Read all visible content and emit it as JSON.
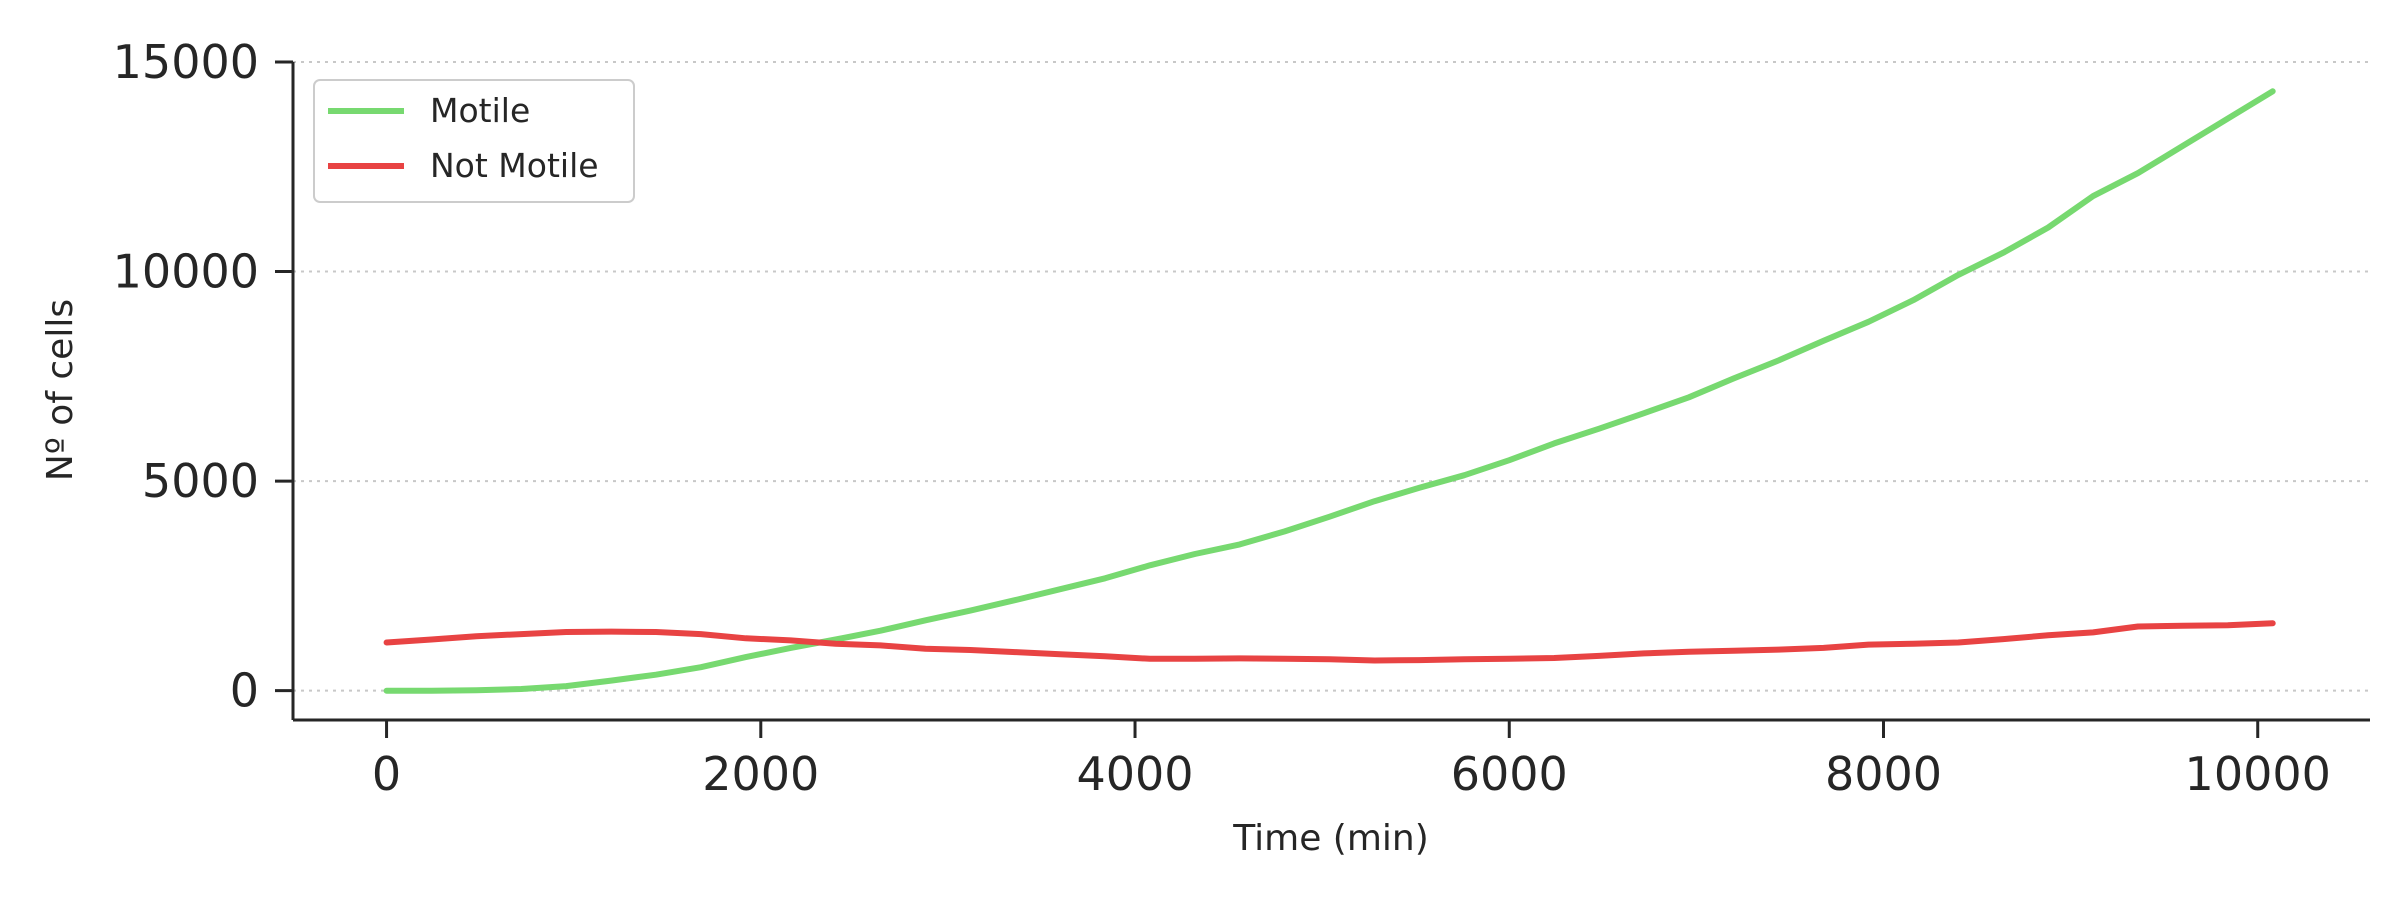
{
  "chart_data": {
    "type": "line",
    "title": "",
    "xlabel": "Time (min)",
    "ylabel": "Nº of cells",
    "xlim": [
      -500,
      10600
    ],
    "ylim": [
      -700,
      15000
    ],
    "xticks": [
      0,
      2000,
      4000,
      6000,
      8000,
      10000
    ],
    "yticks": [
      0,
      5000,
      10000,
      15000
    ],
    "grid": "horizontal dotted",
    "legend_position": "top-left",
    "series": [
      {
        "name": "Motile",
        "color": "#77d970",
        "x": [
          0,
          240,
          480,
          720,
          960,
          1200,
          1440,
          1680,
          1920,
          2160,
          2400,
          2640,
          2880,
          3120,
          3360,
          3600,
          3840,
          4080,
          4320,
          4560,
          4800,
          5040,
          5280,
          5520,
          5760,
          6000,
          6240,
          6480,
          6720,
          6960,
          7200,
          7440,
          7680,
          7920,
          8160,
          8400,
          8640,
          8880,
          9120,
          9360,
          9600,
          9840,
          10080
        ],
        "y": [
          0,
          0,
          10,
          40,
          110,
          240,
          380,
          560,
          800,
          1020,
          1220,
          1430,
          1680,
          1910,
          2160,
          2420,
          2680,
          2990,
          3260,
          3490,
          3800,
          4150,
          4520,
          4840,
          5140,
          5500,
          5900,
          6250,
          6620,
          7000,
          7450,
          7880,
          8350,
          8800,
          9320,
          9920,
          10450,
          11050,
          11800,
          12350,
          13000,
          13650,
          14300
        ]
      },
      {
        "name": "Not Motile",
        "color": "#e84343",
        "x": [
          0,
          240,
          480,
          720,
          960,
          1200,
          1440,
          1680,
          1920,
          2160,
          2400,
          2640,
          2880,
          3120,
          3360,
          3600,
          3840,
          4080,
          4320,
          4560,
          4800,
          5040,
          5280,
          5520,
          5760,
          6000,
          6240,
          6480,
          6720,
          6960,
          7200,
          7440,
          7680,
          7920,
          8160,
          8400,
          8640,
          8880,
          9120,
          9360,
          9600,
          9840,
          10080
        ],
        "y": [
          1150,
          1220,
          1300,
          1350,
          1400,
          1410,
          1400,
          1350,
          1250,
          1200,
          1120,
          1080,
          1000,
          970,
          920,
          870,
          820,
          760,
          760,
          770,
          760,
          750,
          720,
          730,
          750,
          760,
          780,
          830,
          890,
          930,
          950,
          980,
          1020,
          1100,
          1120,
          1150,
          1230,
          1320,
          1390,
          1530,
          1550,
          1560,
          1610
        ]
      }
    ]
  }
}
